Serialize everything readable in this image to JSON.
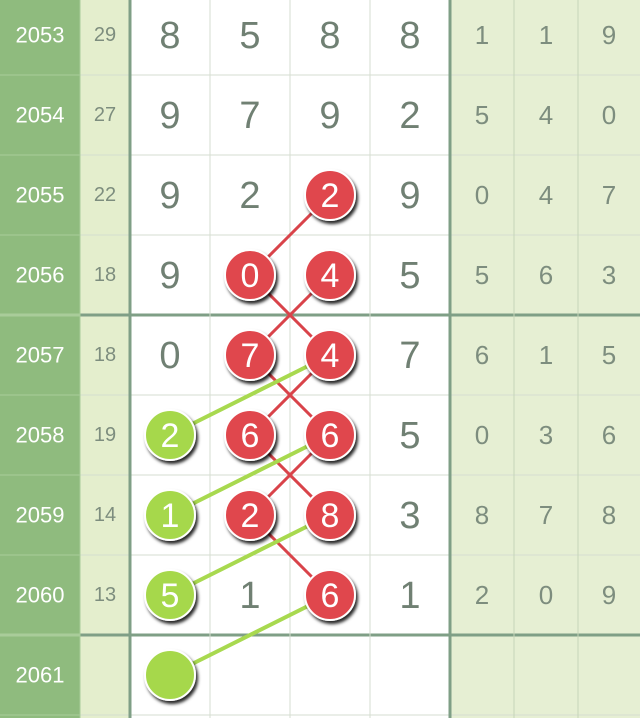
{
  "rows": [
    {
      "issue": "2053",
      "sum": "29",
      "main": [
        "8",
        "5",
        "8",
        "8"
      ],
      "tail": [
        "1",
        "1",
        "9"
      ],
      "red": [],
      "green": []
    },
    {
      "issue": "2054",
      "sum": "27",
      "main": [
        "9",
        "7",
        "9",
        "2"
      ],
      "tail": [
        "5",
        "4",
        "0"
      ],
      "red": [],
      "green": []
    },
    {
      "issue": "2055",
      "sum": "22",
      "main": [
        "9",
        "2",
        "2",
        "9"
      ],
      "tail": [
        "0",
        "4",
        "7"
      ],
      "red": [
        2
      ],
      "green": []
    },
    {
      "issue": "2056",
      "sum": "18",
      "main": [
        "9",
        "0",
        "4",
        "5"
      ],
      "tail": [
        "5",
        "6",
        "3"
      ],
      "red": [
        1,
        2
      ],
      "green": []
    },
    {
      "issue": "2057",
      "sum": "18",
      "main": [
        "0",
        "7",
        "4",
        "7"
      ],
      "tail": [
        "6",
        "1",
        "5"
      ],
      "red": [
        1,
        2
      ],
      "green": []
    },
    {
      "issue": "2058",
      "sum": "19",
      "main": [
        "2",
        "6",
        "6",
        "5"
      ],
      "tail": [
        "0",
        "3",
        "6"
      ],
      "red": [
        1,
        2
      ],
      "green": [
        0
      ]
    },
    {
      "issue": "2059",
      "sum": "14",
      "main": [
        "1",
        "2",
        "8",
        "3"
      ],
      "tail": [
        "8",
        "7",
        "8"
      ],
      "red": [
        1,
        2
      ],
      "green": [
        0
      ]
    },
    {
      "issue": "2060",
      "sum": "13",
      "main": [
        "5",
        "1",
        "6",
        "1"
      ],
      "tail": [
        "2",
        "0",
        "9"
      ],
      "red": [
        2
      ],
      "green": [
        0
      ]
    },
    {
      "issue": "2061",
      "sum": null,
      "main": [
        null,
        null,
        null,
        null
      ],
      "tail": [
        null,
        null,
        null
      ],
      "red": [],
      "green": [
        0
      ]
    }
  ]
}
